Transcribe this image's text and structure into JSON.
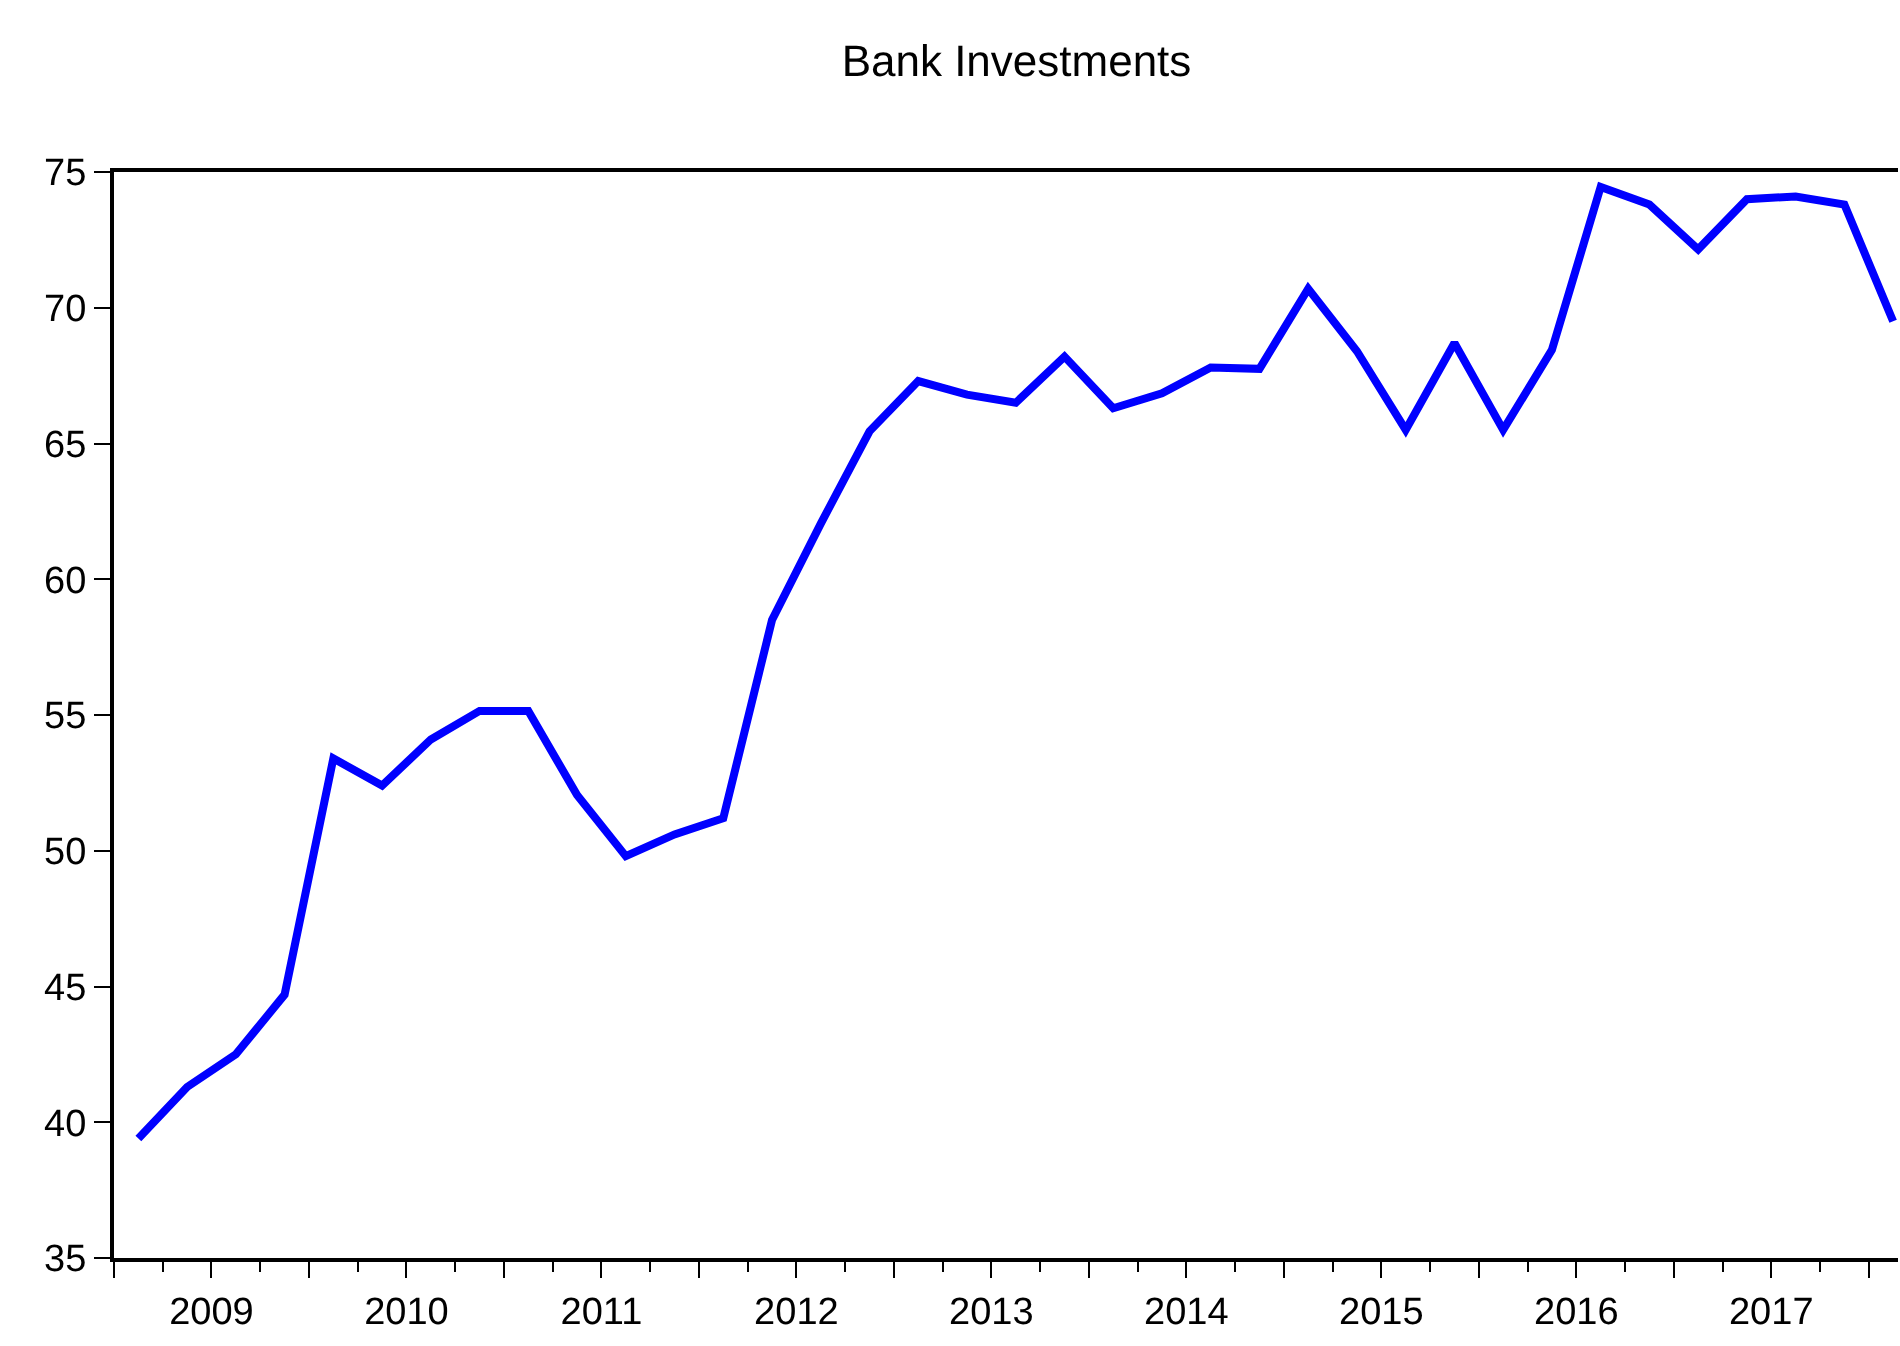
{
  "chart_data": {
    "type": "line",
    "title": "Bank Investments",
    "x": [
      2009.125,
      2009.375,
      2009.625,
      2009.875,
      2010.125,
      2010.375,
      2010.625,
      2010.875,
      2011.125,
      2011.375,
      2011.625,
      2011.875,
      2012.125,
      2012.375,
      2012.625,
      2012.875,
      2013.125,
      2013.375,
      2013.625,
      2013.875,
      2014.125,
      2014.375,
      2014.625,
      2014.875,
      2015.125,
      2015.375,
      2015.625,
      2015.875,
      2016.125,
      2016.375,
      2016.625,
      2016.875,
      2017.125,
      2017.375,
      2017.625,
      2017.875,
      2018.125
    ],
    "series": [
      {
        "color": "#0000ff",
        "values": [
          39.4,
          41.3,
          42.5,
          44.7,
          53.4,
          52.4,
          54.1,
          55.15,
          55.15,
          52.05,
          49.8,
          50.6,
          51.2,
          58.5,
          62.05,
          65.45,
          67.3,
          66.8,
          66.5,
          68.2,
          66.3,
          66.85,
          67.8,
          67.75,
          70.7,
          68.4,
          65.5,
          68.7,
          65.5,
          68.45,
          74.45,
          73.8,
          72.15,
          74.0,
          74.1,
          73.8,
          69.5
        ]
      }
    ],
    "xlim": [
      2009,
      2018.15
    ],
    "xticks": [
      {
        "value": 2009,
        "label": null
      },
      {
        "value": 2009.5,
        "label": "2009"
      },
      {
        "value": 2010,
        "label": null
      },
      {
        "value": 2010.5,
        "label": "2010"
      },
      {
        "value": 2011,
        "label": null
      },
      {
        "value": 2011.5,
        "label": "2011"
      },
      {
        "value": 2012,
        "label": null
      },
      {
        "value": 2012.5,
        "label": "2012"
      },
      {
        "value": 2013,
        "label": null
      },
      {
        "value": 2013.5,
        "label": "2013"
      },
      {
        "value": 2014,
        "label": null
      },
      {
        "value": 2014.5,
        "label": "2014"
      },
      {
        "value": 2015,
        "label": null
      },
      {
        "value": 2015.5,
        "label": "2015"
      },
      {
        "value": 2016,
        "label": null
      },
      {
        "value": 2016.5,
        "label": "2016"
      },
      {
        "value": 2017,
        "label": null
      },
      {
        "value": 2017.5,
        "label": "2017"
      },
      {
        "value": 2018,
        "label": null
      }
    ],
    "ylim": [
      35,
      75
    ],
    "yticks": [
      35,
      40,
      45,
      50,
      55,
      60,
      65,
      70,
      75
    ],
    "marker": "none",
    "line_style": "solid"
  }
}
